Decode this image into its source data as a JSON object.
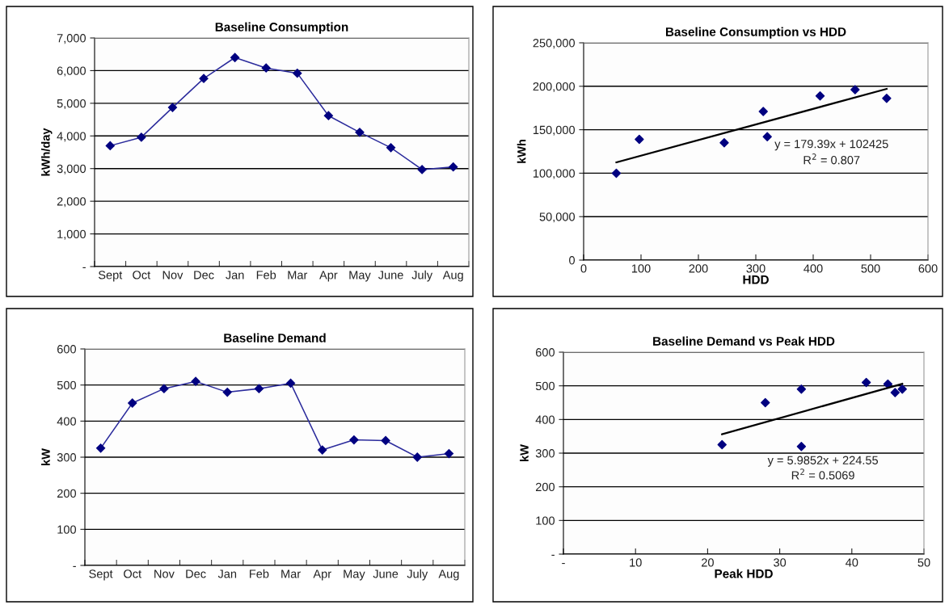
{
  "chart_data": [
    {
      "type": "line",
      "title": "Baseline Consumption",
      "ylabel": "kWh/day",
      "categories": [
        "Sept",
        "Oct",
        "Nov",
        "Dec",
        "Jan",
        "Feb",
        "Mar",
        "Apr",
        "May",
        "June",
        "July",
        "Aug"
      ],
      "series": [
        {
          "color": "#2b2b9c",
          "values": [
            3700,
            3960,
            4870,
            5760,
            6400,
            6080,
            5920,
            4620,
            4110,
            3640,
            2970,
            3050
          ]
        }
      ],
      "ylim": [
        0,
        7000
      ],
      "yticks": [
        {
          "value": 0,
          "label": "-"
        },
        {
          "value": 1000,
          "label": "1,000"
        },
        {
          "value": 2000,
          "label": "2,000"
        },
        {
          "value": 3000,
          "label": "3,000"
        },
        {
          "value": 4000,
          "label": "4,000"
        },
        {
          "value": 5000,
          "label": "5,000"
        },
        {
          "value": 6000,
          "label": "6,000"
        },
        {
          "value": 7000,
          "label": "7,000"
        }
      ],
      "grid": "y",
      "marker": "diamond"
    },
    {
      "type": "scatter",
      "title": "Baseline Consumption vs HDD",
      "xlabel": "HDD",
      "ylabel": "kWh",
      "series": [
        {
          "type": "scatter",
          "color": "#000080",
          "x": [
            57,
            97,
            245,
            313,
            320,
            412,
            473,
            528
          ],
          "values": [
            100000,
            139000,
            135000,
            171000,
            142000,
            189000,
            196000,
            186000
          ]
        },
        {
          "type": "line",
          "color": "#000000",
          "marker": "none",
          "x": [
            57,
            528
          ],
          "values": [
            112500,
            197000
          ]
        }
      ],
      "xlim": [
        0,
        600
      ],
      "xticks": [
        0,
        100,
        200,
        300,
        400,
        500,
        600
      ],
      "ylim": [
        0,
        250000
      ],
      "yticks": [
        0,
        {
          "value": 50000,
          "label": "50,000"
        },
        {
          "value": 100000,
          "label": "100,000"
        },
        {
          "value": 150000,
          "label": "150,000"
        },
        {
          "value": 200000,
          "label": "200,000"
        },
        {
          "value": 250000,
          "label": "250,000"
        }
      ],
      "annotations": [
        "y = 179.39x + 102425",
        "R$^{2}$ = 0.807"
      ],
      "grid": "y",
      "marker": "diamond"
    },
    {
      "type": "line",
      "title": "Baseline Demand",
      "ylabel": "kW",
      "categories": [
        "Sept",
        "Oct",
        "Nov",
        "Dec",
        "Jan",
        "Feb",
        "Mar",
        "Apr",
        "May",
        "June",
        "July",
        "Aug"
      ],
      "series": [
        {
          "color": "#2b2b9c",
          "values": [
            325,
            450,
            490,
            510,
            480,
            490,
            505,
            320,
            348,
            346,
            300,
            310
          ]
        }
      ],
      "ylim": [
        0,
        600
      ],
      "yticks": [
        {
          "value": 0,
          "label": "-"
        },
        100,
        200,
        300,
        400,
        500,
        600
      ],
      "grid": "y",
      "marker": "diamond"
    },
    {
      "type": "scatter",
      "title": "Baseline Demand vs Peak HDD",
      "xlabel": "Peak HDD",
      "ylabel": "kW",
      "series": [
        {
          "type": "scatter",
          "color": "#000080",
          "x": [
            22,
            28,
            33,
            33,
            42,
            45,
            46,
            47
          ],
          "values": [
            325,
            450,
            490,
            320,
            510,
            505,
            480,
            490
          ]
        },
        {
          "type": "line",
          "color": "#000000",
          "marker": "none",
          "x": [
            22,
            47
          ],
          "values": [
            356,
            506
          ]
        }
      ],
      "xlim": [
        0,
        50
      ],
      "xticks": [
        {
          "value": 0,
          "label": "-"
        },
        10,
        20,
        30,
        40,
        50
      ],
      "ylim": [
        0,
        600
      ],
      "yticks": [
        {
          "value": 0,
          "label": "-"
        },
        100,
        200,
        300,
        400,
        500,
        600
      ],
      "annotations": [
        "y = 5.9852x + 224.55",
        "R$^{2}$ = 0.5069"
      ],
      "grid": "y",
      "marker": "diamond"
    }
  ]
}
